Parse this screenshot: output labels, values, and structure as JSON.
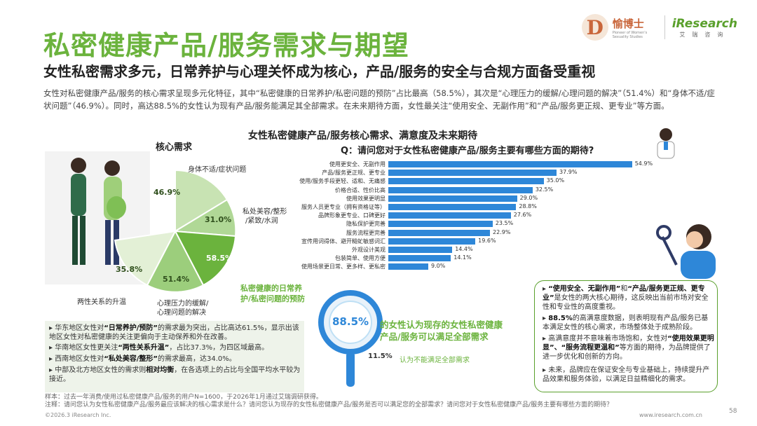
{
  "header": {
    "title": "私密健康产品/服务需求与期望",
    "subtitle": "女性私密需求多元，日常养护与心理关怀成为核心，产品/服务的安全与合规方面备受重视",
    "intro": "女性对私密健康产品/服务的核心需求呈现多元化特征，其中“私密健康的日常养护/私密问题的预防”占比最高（58.5%），其次是“心理压力的缓解/心理问题的解决”（51.4%）和“身体不适/症状问题”（46.9%）。同时，高达88.5%的女性认为现有产品/服务能满足其全部需求。在未来期待方面，女性最关注“使用安全、无副作用”和“产品/服务更正规、更专业”等方面。"
  },
  "logos": {
    "brand_mark": "D",
    "brand_cn": "愉博士",
    "brand_en": "Pioneer of Women's Sexuality Studies",
    "ires_name": "iResearch",
    "ires_cn": "艾瑞咨询"
  },
  "section": {
    "chart_title": "女性私密健康产品/服务核心需求、满意度及未来期待",
    "core_label": "核心需求",
    "question": "Q：请问您对于女性私密健康产品/服务主要有哪些方面的期待?"
  },
  "pie": {
    "slices": [
      {
        "label": "身体不适/症状问题",
        "pct": "46.9%"
      },
      {
        "label": "私处美容/整形/紧致/水润",
        "pct": "31.0%"
      },
      {
        "label": "私密健康的日常养护/私密问题的预防",
        "pct": "58.5%"
      },
      {
        "label": "心理压力的缓解/心理问题的解决",
        "pct": "51.4%"
      },
      {
        "label": "两性关系的升温",
        "pct": "35.8%"
      }
    ],
    "cat_body": "身体不适/症状问题",
    "cat_beauty_1": "私处美容/整形",
    "cat_beauty_2": "/紧致/水润",
    "cat_daily_1": "私密健康的日常养",
    "cat_daily_2": "护/私密问题的预防",
    "cat_mental_1": "心理压力的缓解/",
    "cat_mental_2": "心理问题的解决",
    "cat_relation": "两性关系的升温"
  },
  "chart_data": {
    "type": "bar",
    "title": "请问您对于女性私密健康产品/服务主要有哪些方面的期待?",
    "categories": [
      "使用更安全、无副作用",
      "产品/服务更正规、更专业",
      "使用/服务手段更轻、适和、无痛感",
      "价格合适、性价比高",
      "使用效果更明显",
      "服务人员更专业（拥有资格证等）",
      "品牌形象更专业、口碑更好",
      "隐私保护更完善",
      "服务流程更完善",
      "宣传用词得体、避开糙虻敏感词汇",
      "外观设计美观",
      "包装简单、使用方便",
      "使用场景更日常、更多样、更私密"
    ],
    "values": [
      54.9,
      37.9,
      35.0,
      32.5,
      29.0,
      28.8,
      27.6,
      23.5,
      22.9,
      19.6,
      14.4,
      14.1,
      9.0
    ],
    "labels": [
      "54.9%",
      "37.9%",
      "35.0%",
      "32.5%",
      "29.0%",
      "28.8%",
      "27.6%",
      "23.5%",
      "22.9%",
      "19.6%",
      "14.4%",
      "14.1%",
      "9.0%"
    ],
    "xlim": [
      0,
      60
    ],
    "color": "#2e87d8"
  },
  "satisfaction": {
    "satisfied_pct": "88.5%",
    "satisfied_text_1": "的女性认为现存的女性私密健康",
    "satisfied_text_2": "产品/服务可以满足全部需求",
    "unsatisfied_pct": "11.5%",
    "unsatisfied_text": "认为不能满足全部需求"
  },
  "regions": [
    {
      "pre": "华东地区女性对",
      "bold": "“日常养护/预防”",
      "post": "的需求最为突出，占比高达61.5%，显示出该地区女性对私密健康的关注更偏向于主动保养和外在改善。"
    },
    {
      "pre": "华南地区女性更关注",
      "bold": "“两性关系升温”",
      "post": "，占比37.3%，为四区域最高。"
    },
    {
      "pre": "西南地区女性对",
      "bold": "“私处美容/整形”",
      "post": "的需求最高，达34.0%。"
    },
    {
      "pre": "中部及北方地区女性的需求则",
      "bold": "相对均衡",
      "post": "，在各选项上的占比与全国平均水平较为接近。"
    }
  ],
  "insights": [
    {
      "bold1": "“使用安全、无副作用”",
      "mid": "和",
      "bold2": "“产品/服务更正规、更专业”",
      "post": "是女性的两大核心期待，这反映出当前市场对安全性和专业性的高度重视。"
    },
    {
      "bold1": "88.5%",
      "mid": "",
      "bold2": "",
      "post": "的高满意度数据，则表明现有产品/服务已基本满足女性的核心需求，市场整体处于成熟阶段。"
    },
    {
      "bold1": "",
      "mid": "高满意度并不意味着市场饱和，女性对",
      "bold2": "“使用效果更明显”、“服务流程更温和”",
      "post": "等方面的期待，为品牌提供了进一步优化和创新的方向。"
    },
    {
      "bold1": "",
      "mid": "",
      "bold2": "",
      "post": "未来，品牌应在保证安全与专业基础上，持续提升产品效果和服务体验，以满足日益精细化的需求。"
    }
  ],
  "footnote": {
    "sample": "样本：过去一年消费/使用过私密健康产品/服务的用户N=1600，于2026年1月通过艾瑞调研获得。",
    "note": "注释：请问您认为女性私密健康产品/服务最应该解决的核心需求是什么？请问您认为现存的女性私密健康产品/服务是否可以满足您的全部需求？请问您对于女性私密健康产品/服务主要有哪些方面的期待？"
  },
  "footer": {
    "copyright": "©2026.3 iResearch Inc.",
    "url": "www.iresearch.com.cn",
    "page": "58"
  },
  "colors": {
    "accent_green": "#6bb33d",
    "bar_blue": "#2e87d8"
  }
}
